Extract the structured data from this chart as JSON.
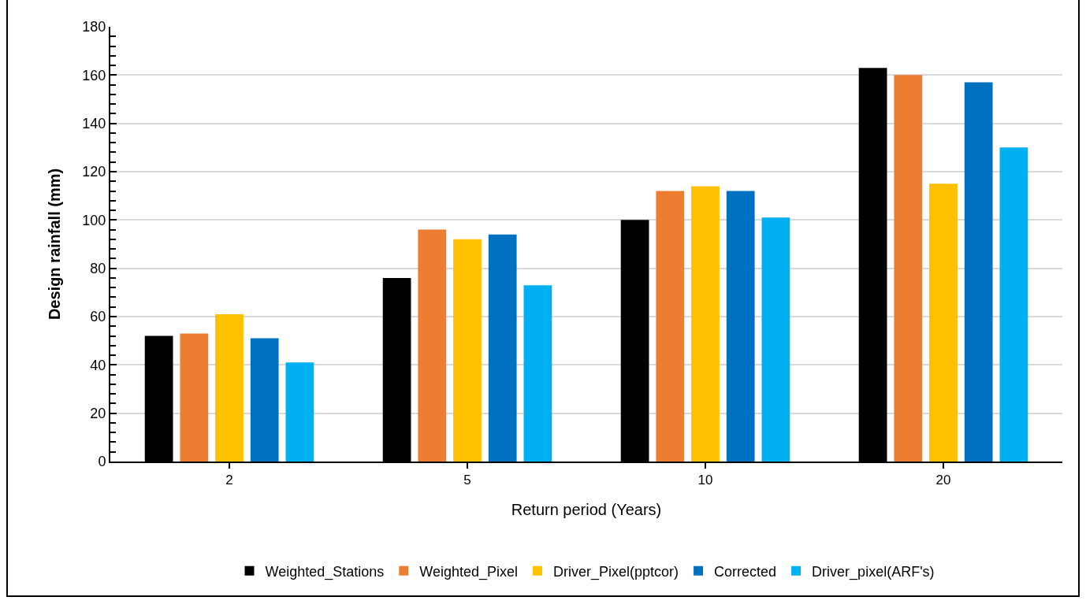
{
  "chart_data": {
    "type": "bar",
    "xlabel": "Return period (Years)",
    "ylabel": "Design rainfall (mm)",
    "categories": [
      "2",
      "5",
      "10",
      "20"
    ],
    "series": [
      {
        "name": "Weighted_Stations",
        "color": "#000000",
        "values": [
          52,
          76,
          100,
          163
        ]
      },
      {
        "name": "Weighted_Pixel",
        "color": "#ed7d31",
        "values": [
          53,
          96,
          112,
          160
        ]
      },
      {
        "name": "Driver_Pixel(pptcor)",
        "color": "#ffc000",
        "values": [
          61,
          92,
          114,
          115
        ]
      },
      {
        "name": "Corrected",
        "color": "#0070c0",
        "values": [
          51,
          94,
          112,
          157
        ]
      },
      {
        "name": "Driver_pixel(ARF's)",
        "color": "#00b0f0",
        "values": [
          41,
          73,
          101,
          130
        ]
      }
    ],
    "ylim": [
      0,
      180
    ],
    "yticks": [
      0,
      {
        "value": 4,
        "label": null
      },
      {
        "value": 8,
        "label": null
      },
      {
        "value": 12,
        "label": null
      },
      {
        "value": 16,
        "label": null
      },
      20,
      {
        "value": 24,
        "label": null
      },
      {
        "value": 28,
        "label": null
      },
      {
        "value": 32,
        "label": null
      },
      {
        "value": 36,
        "label": null
      },
      40,
      {
        "value": 44,
        "label": null
      },
      {
        "value": 48,
        "label": null
      },
      {
        "value": 52,
        "label": null
      },
      {
        "value": 56,
        "label": null
      },
      60,
      {
        "value": 64,
        "label": null
      },
      {
        "value": 68,
        "label": null
      },
      {
        "value": 72,
        "label": null
      },
      {
        "value": 76,
        "label": null
      },
      80,
      {
        "value": 84,
        "label": null
      },
      {
        "value": 88,
        "label": null
      },
      {
        "value": 92,
        "label": null
      },
      {
        "value": 96,
        "label": null
      },
      100,
      {
        "value": 104,
        "label": null
      },
      {
        "value": 108,
        "label": null
      },
      {
        "value": 112,
        "label": null
      },
      {
        "value": 116,
        "label": null
      },
      120,
      {
        "value": 124,
        "label": null
      },
      {
        "value": 128,
        "label": null
      },
      {
        "value": 132,
        "label": null
      },
      {
        "value": 136,
        "label": null
      },
      140,
      {
        "value": 144,
        "label": null
      },
      {
        "value": 148,
        "label": null
      },
      {
        "value": 152,
        "label": null
      },
      {
        "value": 156,
        "label": null
      },
      160,
      {
        "value": 164,
        "label": null
      },
      {
        "value": 168,
        "label": null
      },
      {
        "value": 172,
        "label": null
      },
      {
        "value": 176,
        "label": null
      },
      180
    ],
    "grid": "y",
    "legend": "bottom"
  }
}
